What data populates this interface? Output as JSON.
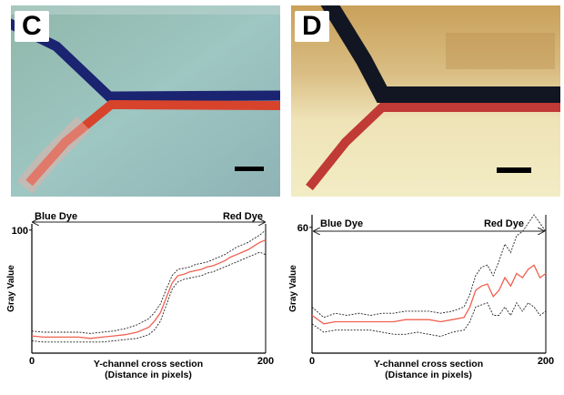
{
  "panels": {
    "C": {
      "label": "C"
    },
    "D": {
      "label": "D"
    }
  },
  "colors": {
    "blue_dye": "#1a2470",
    "red_dye": "#d8432c",
    "mean_line": "#f06050",
    "bounds_line": "#222222"
  },
  "chart_data": [
    {
      "type": "line",
      "title": "",
      "xlabel": "Y-channel cross section",
      "xlabel_sub": "(Distance in pixels)",
      "ylabel": "Gray Value",
      "xlim": [
        0,
        200
      ],
      "ylim": [
        0,
        105
      ],
      "xticks": [
        0,
        200
      ],
      "yticks": [
        100
      ],
      "arrow_left_label": "Blue Dye",
      "arrow_right_label": "Red Dye",
      "grid": false,
      "x": [
        0,
        10,
        20,
        30,
        40,
        50,
        60,
        70,
        80,
        90,
        100,
        105,
        110,
        115,
        120,
        125,
        130,
        135,
        140,
        145,
        150,
        155,
        160,
        165,
        170,
        175,
        180,
        185,
        190,
        195,
        200
      ],
      "series": [
        {
          "role": "upper",
          "values": [
            18,
            17,
            17,
            17,
            17,
            16,
            17,
            18,
            20,
            23,
            28,
            33,
            40,
            52,
            63,
            68,
            69,
            70,
            72,
            73,
            74,
            76,
            78,
            80,
            83,
            86,
            88,
            90,
            93,
            96,
            100
          ]
        },
        {
          "role": "mean",
          "values": [
            14,
            13,
            13,
            13,
            13,
            12,
            13,
            14,
            15,
            17,
            21,
            26,
            33,
            45,
            57,
            63,
            64,
            66,
            67,
            68,
            70,
            71,
            73,
            75,
            78,
            80,
            82,
            84,
            87,
            90,
            92
          ]
        },
        {
          "role": "lower",
          "values": [
            10,
            9,
            9,
            9,
            9,
            9,
            9,
            10,
            11,
            12,
            15,
            19,
            26,
            39,
            52,
            58,
            60,
            61,
            62,
            63,
            65,
            66,
            68,
            70,
            72,
            74,
            76,
            78,
            80,
            82,
            80
          ]
        }
      ]
    },
    {
      "type": "line",
      "title": "",
      "xlabel": "Y-channel cross section",
      "xlabel_sub": "(Distance in pixels)",
      "ylabel": "Gray Value",
      "xlim": [
        0,
        200
      ],
      "ylim": [
        0,
        66
      ],
      "xticks": [
        0,
        200
      ],
      "yticks": [
        60
      ],
      "arrow_left_label": "Blue Dye",
      "arrow_right_label": "Red Dye",
      "grid": false,
      "x": [
        0,
        10,
        20,
        30,
        40,
        50,
        60,
        70,
        80,
        90,
        100,
        110,
        120,
        130,
        135,
        140,
        145,
        150,
        155,
        160,
        165,
        170,
        175,
        180,
        185,
        190,
        195,
        200
      ],
      "series": [
        {
          "role": "upper",
          "values": [
            22,
            17,
            19,
            18,
            19,
            18,
            19,
            19,
            20,
            20,
            20,
            19,
            20,
            22,
            28,
            37,
            41,
            42,
            37,
            44,
            52,
            48,
            56,
            58,
            62,
            66,
            62,
            58
          ]
        },
        {
          "role": "mean",
          "values": [
            18,
            14,
            15,
            15,
            15,
            15,
            15,
            15,
            16,
            16,
            16,
            15,
            16,
            17,
            22,
            30,
            32,
            33,
            27,
            30,
            36,
            32,
            38,
            36,
            40,
            42,
            36,
            38
          ]
        },
        {
          "role": "lower",
          "values": [
            14,
            10,
            11,
            11,
            11,
            11,
            10,
            9,
            9,
            10,
            9,
            8,
            10,
            11,
            15,
            22,
            23,
            24,
            18,
            18,
            22,
            18,
            24,
            20,
            24,
            22,
            18,
            20
          ]
        }
      ]
    }
  ]
}
